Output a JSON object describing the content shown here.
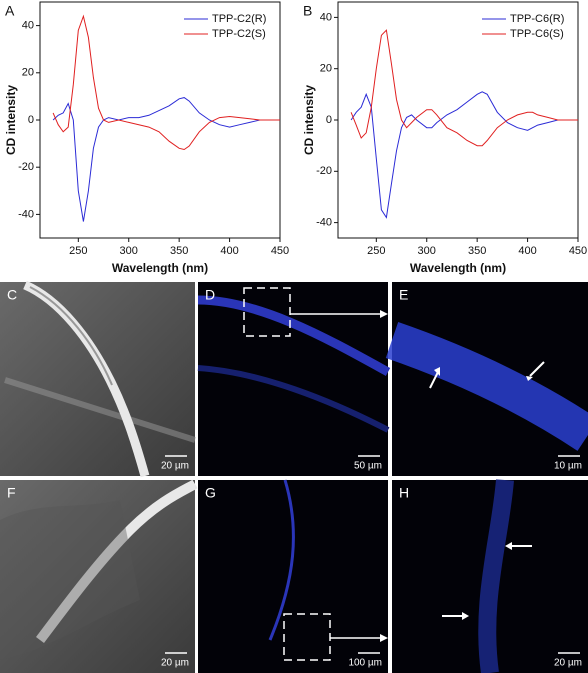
{
  "chart_data": [
    {
      "type": "line",
      "panel_label": "A",
      "x_label": "Wavelength (nm)",
      "y_label": "CD intensity",
      "x": [
        225,
        230,
        235,
        240,
        245,
        250,
        255,
        260,
        265,
        270,
        275,
        280,
        290,
        300,
        310,
        320,
        330,
        340,
        350,
        355,
        360,
        370,
        380,
        390,
        400,
        410,
        420,
        430,
        440,
        450
      ],
      "series": [
        {
          "name": "TPP-C2(R)",
          "color": "#2b2bd6",
          "values": [
            0,
            2,
            3,
            7,
            0,
            -30,
            -43,
            -30,
            -12,
            -3,
            0,
            1,
            0,
            1,
            1,
            2,
            4,
            6,
            9,
            9.5,
            8,
            3,
            0,
            -2,
            -3,
            -2,
            -1,
            0,
            0,
            0
          ]
        },
        {
          "name": "TPP-C2(S)",
          "color": "#e02020",
          "values": [
            3,
            -2,
            -5,
            -3,
            15,
            38,
            44,
            35,
            18,
            5,
            0,
            -1,
            0,
            -1,
            -2,
            -3,
            -5,
            -9,
            -12,
            -12.5,
            -11,
            -5,
            -1,
            1,
            1.5,
            1,
            0.5,
            0,
            0,
            0
          ]
        }
      ],
      "xlim": [
        212,
        450
      ],
      "xticks": [
        250,
        300,
        350,
        400,
        450
      ],
      "ylim": [
        -50,
        50
      ],
      "yticks": [
        -40,
        -20,
        0,
        20,
        40
      ],
      "legend": "top-right",
      "grid": false
    },
    {
      "type": "line",
      "panel_label": "B",
      "x_label": "Wavelength (nm)",
      "y_label": "CD intensity",
      "x": [
        225,
        230,
        235,
        240,
        245,
        250,
        255,
        260,
        265,
        270,
        275,
        280,
        285,
        290,
        300,
        305,
        310,
        320,
        330,
        340,
        350,
        355,
        360,
        370,
        380,
        390,
        400,
        405,
        410,
        420,
        430,
        450
      ],
      "series": [
        {
          "name": "TPP-C6(R)",
          "color": "#2b2bd6",
          "values": [
            0,
            3,
            5,
            10,
            5,
            -15,
            -35,
            -38,
            -25,
            -12,
            -3,
            1,
            2,
            0,
            -3,
            -3,
            -1,
            2,
            4,
            7,
            10,
            11,
            10,
            3,
            -1,
            -3,
            -4,
            -3,
            -2,
            -1,
            0,
            0
          ]
        },
        {
          "name": "TPP-C6(S)",
          "color": "#e02020",
          "values": [
            3,
            -2,
            -7,
            -5,
            5,
            20,
            33,
            35,
            22,
            8,
            0,
            -3,
            -1,
            1,
            4,
            4,
            2,
            -3,
            -5,
            -8,
            -10,
            -10,
            -8,
            -3,
            0,
            2,
            3,
            3,
            2,
            1,
            0,
            0
          ]
        }
      ],
      "xlim": [
        212,
        450
      ],
      "xticks": [
        250,
        300,
        350,
        400,
        450
      ],
      "ylim": [
        -46,
        46
      ],
      "yticks": [
        -40,
        -20,
        0,
        20,
        40
      ],
      "legend": "top-right",
      "grid": false
    }
  ],
  "images": [
    {
      "label": "C",
      "scale_bar": "20 µm"
    },
    {
      "label": "D",
      "scale_bar": "50 µm"
    },
    {
      "label": "E",
      "scale_bar": "10 µm"
    },
    {
      "label": "F",
      "scale_bar": "20 µm"
    },
    {
      "label": "G",
      "scale_bar": "100 µm"
    },
    {
      "label": "H",
      "scale_bar": "20 µm"
    }
  ]
}
